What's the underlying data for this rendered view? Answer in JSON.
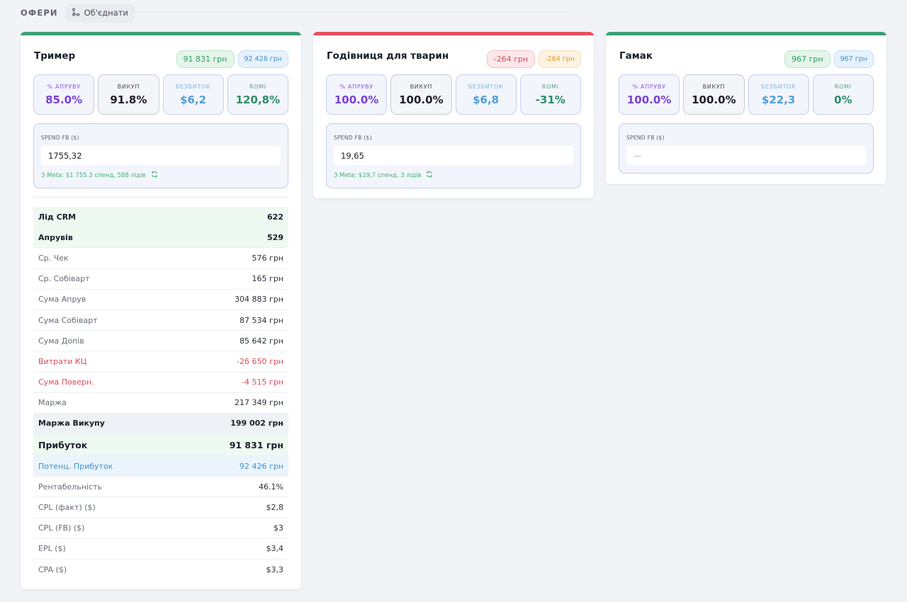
{
  "header": {
    "title": "ОФЕРИ",
    "merge_label": "Об'єднати"
  },
  "colors": {
    "card_1_bar": "#3f9e78",
    "card_2_bar": "#e5505f",
    "card_3_bar": "#3f9e78"
  },
  "cards": [
    {
      "title": "Тример",
      "badge_profit": "91 831 грн",
      "badge_potential": "92 426 грн",
      "stats": [
        {
          "label": "% АПРУВУ",
          "value": "85.0%"
        },
        {
          "label": "ВИКУП",
          "value": "91.8%"
        },
        {
          "label": "БЕЗБИТОК",
          "value": "$6,2"
        },
        {
          "label": "ROMI",
          "value": "120,8%"
        }
      ],
      "spend_label": "SPEND FB ($)",
      "spend_value": "1755,32",
      "spend_placeholder": "",
      "meta_text": "З Meta: $1 755.3 спенд, 588 лідів",
      "rows": [
        {
          "label": "Лід CRM",
          "value": "622"
        },
        {
          "label": "Апрувів",
          "value": "529"
        },
        {
          "label": "Ср. Чек",
          "value": "576 грн"
        },
        {
          "label": "Ср. Собіварт",
          "value": "165 грн"
        },
        {
          "label": "Сума Апрув",
          "value": "304 883 грн"
        },
        {
          "label": "Сума Собіварт",
          "value": "87 534 грн"
        },
        {
          "label": "Сума Допів",
          "value": "85 642 грн"
        },
        {
          "label": "Витрати КЦ",
          "value": "-26 650 грн"
        },
        {
          "label": "Сума Поверн.",
          "value": "-4 515 грн"
        },
        {
          "label": "Маржа",
          "value": "217 349 грн"
        },
        {
          "label": "Маржа Викупу",
          "value": "199 002 грн"
        },
        {
          "label": "Прибуток",
          "value": "91 831 грн"
        },
        {
          "label": "Потенц. Прибуток",
          "value": "92 426 грн"
        },
        {
          "label": "Рентабельність",
          "value": "46.1%"
        },
        {
          "label": "CPL (факт) ($)",
          "value": "$2,8"
        },
        {
          "label": "CPL (FB) ($)",
          "value": "$3"
        },
        {
          "label": "EPL ($)",
          "value": "$3,4"
        },
        {
          "label": "CPA ($)",
          "value": "$3,3"
        }
      ]
    },
    {
      "title": "Годівниця для тварин",
      "badge_profit": "-264 грн",
      "badge_potential": "-264 грн",
      "stats": [
        {
          "label": "% АПРУВУ",
          "value": "100.0%"
        },
        {
          "label": "ВИКУП",
          "value": "100.0%"
        },
        {
          "label": "БЕЗБИТОК",
          "value": "$6,8"
        },
        {
          "label": "ROMI",
          "value": "-31%"
        }
      ],
      "spend_label": "SPEND FB ($)",
      "spend_value": "19,65",
      "spend_placeholder": "",
      "meta_text": "З Meta: $19,7 спенд, 3 лідів"
    },
    {
      "title": "Гамак",
      "badge_profit": "967 грн",
      "badge_potential": "967 грн",
      "stats": [
        {
          "label": "% АПРУВУ",
          "value": "100.0%"
        },
        {
          "label": "ВИКУП",
          "value": "100.0%"
        },
        {
          "label": "БЕЗБИТОК",
          "value": "$22,3"
        },
        {
          "label": "ROMI",
          "value": "0%"
        }
      ],
      "spend_label": "SPEND FB ($)",
      "spend_value": "",
      "spend_placeholder": "—"
    }
  ]
}
